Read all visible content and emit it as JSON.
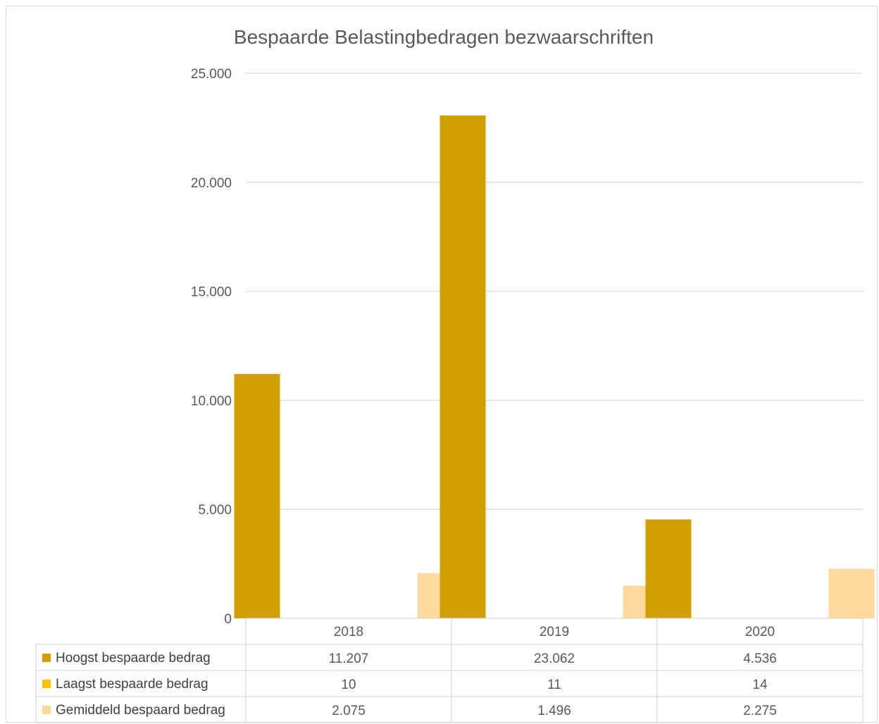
{
  "chart_data": {
    "type": "bar",
    "title": "Bespaarde Belastingbedragen bezwaarschriften",
    "categories": [
      "2018",
      "2019",
      "2020"
    ],
    "ylim": [
      0,
      25000
    ],
    "yticks": [
      0,
      5000,
      10000,
      15000,
      20000,
      25000
    ],
    "ytick_labels": [
      "0",
      "5.000",
      "10.000",
      "15.000",
      "20.000",
      "25.000"
    ],
    "grid": true,
    "legend": "data-table",
    "series": [
      {
        "name": "Hoogst bespaarde bedrag",
        "color": "#D19F00",
        "values": [
          11207,
          23062,
          4536
        ],
        "labels": [
          "11.207",
          "23.062",
          "4.536"
        ]
      },
      {
        "name": "Laagst bespaarde bedrag",
        "color": "#FFC000",
        "values": [
          10,
          11,
          14
        ],
        "labels": [
          "10",
          "11",
          "14"
        ]
      },
      {
        "name": "Gemiddeld bespaard bedrag",
        "color": "#FFD89C",
        "values": [
          2075,
          1496,
          2275
        ],
        "labels": [
          "2.075",
          "1.496",
          "2.275"
        ]
      }
    ]
  }
}
